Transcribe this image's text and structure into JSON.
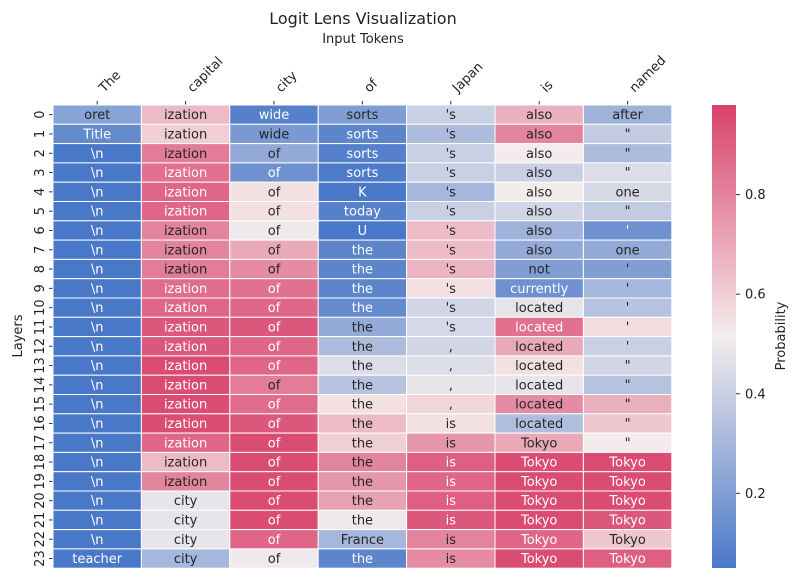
{
  "chart_data": {
    "type": "heatmap",
    "title": "Logit Lens Visualization",
    "xlabel": "Input Tokens",
    "ylabel": "Layers",
    "colorbar_label": "Probability",
    "colorbar_ticks": [
      "0.2",
      "0.4",
      "0.6",
      "0.8"
    ],
    "colorbar_range": [
      0.05,
      0.98
    ],
    "colormap": [
      "#4a78c8",
      "#f4eded",
      "#d9416b"
    ],
    "x_tokens": [
      "The",
      "capital",
      "city",
      "of",
      "Japan",
      "is",
      "named"
    ],
    "y_layers": [
      "0",
      "1",
      "2",
      "3",
      "4",
      "5",
      "6",
      "7",
      "8",
      "9",
      "10",
      "11",
      "12",
      "13",
      "14",
      "15",
      "16",
      "17",
      "18",
      "19",
      "20",
      "21",
      "22",
      "23"
    ],
    "cell_text": [
      [
        "oret",
        "ization",
        "wide",
        "sorts",
        "'s",
        "also",
        "after"
      ],
      [
        "Title",
        "ization",
        "wide",
        "sorts",
        "'s",
        "also",
        "\""
      ],
      [
        "\\n",
        "ization",
        "of",
        "sorts",
        "'s",
        "also",
        "\""
      ],
      [
        "\\n",
        "ization",
        "of",
        "sorts",
        "'s",
        "also",
        "\""
      ],
      [
        "\\n",
        "ization",
        "of",
        "K",
        "'s",
        "also",
        "one"
      ],
      [
        "\\n",
        "ization",
        "of",
        "today",
        "'s",
        "also",
        "\""
      ],
      [
        "\\n",
        "ization",
        "of",
        "U",
        "'s",
        "also",
        "'"
      ],
      [
        "\\n",
        "ization",
        "of",
        "the",
        "'s",
        "also",
        "one"
      ],
      [
        "\\n",
        "ization",
        "of",
        "the",
        "'s",
        "not",
        "'"
      ],
      [
        "\\n",
        "ization",
        "of",
        "the",
        "'s",
        "currently",
        "'"
      ],
      [
        "\\n",
        "ization",
        "of",
        "the",
        "'s",
        "located",
        "'"
      ],
      [
        "\\n",
        "ization",
        "of",
        "the",
        "'s",
        "located",
        "'"
      ],
      [
        "\\n",
        "ization",
        "of",
        "the",
        ",",
        "located",
        "'"
      ],
      [
        "\\n",
        "ization",
        "of",
        "the",
        ",",
        "located",
        "\""
      ],
      [
        "\\n",
        "ization",
        "of",
        "the",
        ",",
        "located",
        "\""
      ],
      [
        "\\n",
        "ization",
        "of",
        "the",
        ",",
        "located",
        "\""
      ],
      [
        "\\n",
        "ization",
        "of",
        "the",
        "is",
        "located",
        "\""
      ],
      [
        "\\n",
        "ization",
        "of",
        "the",
        "is",
        "Tokyo",
        "\""
      ],
      [
        "\\n",
        "ization",
        "of",
        "the",
        "is",
        "Tokyo",
        "Tokyo"
      ],
      [
        "\\n",
        "ization",
        "of",
        "the",
        "is",
        "Tokyo",
        "Tokyo"
      ],
      [
        "\\n",
        "city",
        "of",
        "the",
        "is",
        "Tokyo",
        "Tokyo"
      ],
      [
        "\\n",
        "city",
        "of",
        "the",
        "is",
        "Tokyo",
        "Tokyo"
      ],
      [
        "\\n",
        "city",
        "of",
        "France",
        "is",
        "Tokyo",
        "Tokyo"
      ],
      [
        "teacher",
        "city",
        "of",
        "the",
        "is",
        "Tokyo",
        "Tokyo"
      ]
    ],
    "values": [
      [
        0.22,
        0.65,
        0.08,
        0.2,
        0.4,
        0.68,
        0.28
      ],
      [
        0.12,
        0.6,
        0.18,
        0.1,
        0.32,
        0.8,
        0.38
      ],
      [
        0.05,
        0.82,
        0.25,
        0.08,
        0.4,
        0.52,
        0.32
      ],
      [
        0.05,
        0.85,
        0.15,
        0.06,
        0.4,
        0.4,
        0.45
      ],
      [
        0.05,
        0.88,
        0.55,
        0.05,
        0.3,
        0.52,
        0.43
      ],
      [
        0.05,
        0.88,
        0.55,
        0.08,
        0.4,
        0.42,
        0.38
      ],
      [
        0.05,
        0.8,
        0.5,
        0.05,
        0.65,
        0.28,
        0.15
      ],
      [
        0.05,
        0.8,
        0.7,
        0.1,
        0.65,
        0.25,
        0.25
      ],
      [
        0.05,
        0.82,
        0.78,
        0.1,
        0.67,
        0.2,
        0.2
      ],
      [
        0.05,
        0.86,
        0.85,
        0.1,
        0.55,
        0.15,
        0.3
      ],
      [
        0.05,
        0.88,
        0.88,
        0.12,
        0.42,
        0.48,
        0.35
      ],
      [
        0.05,
        0.92,
        0.92,
        0.25,
        0.43,
        0.85,
        0.56
      ],
      [
        0.05,
        0.92,
        0.88,
        0.32,
        0.42,
        0.7,
        0.4
      ],
      [
        0.05,
        0.95,
        0.88,
        0.45,
        0.45,
        0.55,
        0.42
      ],
      [
        0.05,
        0.95,
        0.82,
        0.35,
        0.48,
        0.48,
        0.35
      ],
      [
        0.05,
        0.95,
        0.86,
        0.55,
        0.58,
        0.78,
        0.68
      ],
      [
        0.05,
        0.95,
        0.92,
        0.65,
        0.55,
        0.33,
        0.62
      ],
      [
        0.05,
        0.88,
        0.95,
        0.6,
        0.75,
        0.7,
        0.52
      ],
      [
        0.05,
        0.65,
        0.95,
        0.8,
        0.9,
        0.95,
        0.95
      ],
      [
        0.05,
        0.8,
        0.95,
        0.75,
        0.88,
        0.95,
        0.95
      ],
      [
        0.05,
        0.48,
        0.95,
        0.72,
        0.9,
        0.95,
        0.95
      ],
      [
        0.05,
        0.48,
        0.95,
        0.5,
        0.92,
        0.95,
        0.92
      ],
      [
        0.05,
        0.48,
        0.88,
        0.3,
        0.8,
        0.88,
        0.62
      ],
      [
        0.05,
        0.3,
        0.5,
        0.1,
        0.78,
        0.95,
        0.9
      ]
    ]
  }
}
